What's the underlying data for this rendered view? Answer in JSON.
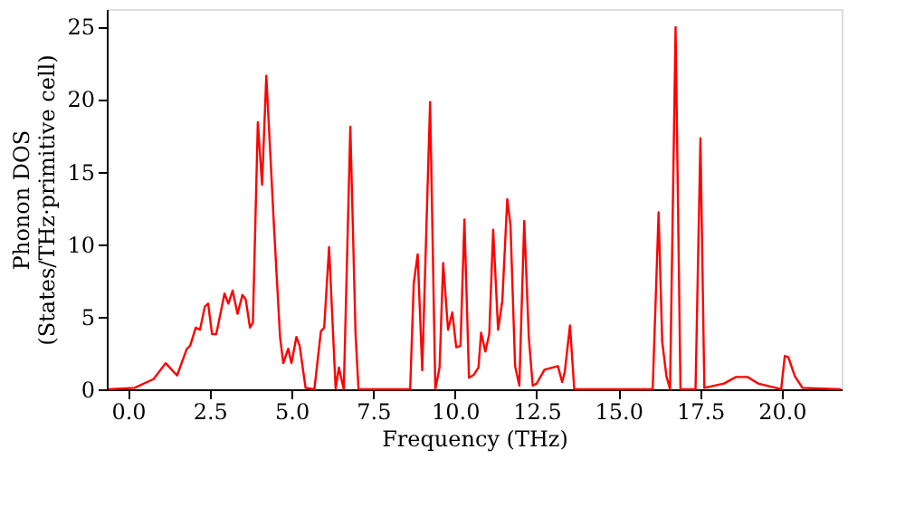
{
  "chart_data": {
    "type": "line",
    "xlabel": "Frequency (THz)",
    "ylabel": "Phonon DOS\n(States/THz·primitive cell)",
    "x": [
      -0.6,
      0.2,
      0.78,
      1.15,
      1.5,
      1.8,
      1.9,
      2.07,
      2.2,
      2.35,
      2.45,
      2.57,
      2.7,
      2.95,
      3.07,
      3.2,
      3.35,
      3.5,
      3.6,
      3.73,
      3.82,
      3.97,
      4.1,
      4.23,
      4.47,
      4.65,
      4.75,
      4.9,
      5.0,
      5.15,
      5.25,
      5.43,
      5.7,
      5.9,
      6.0,
      6.15,
      6.35,
      6.45,
      6.6,
      6.8,
      6.96,
      7.05,
      8.63,
      8.74,
      8.86,
      9.0,
      9.24,
      9.4,
      9.53,
      9.64,
      9.79,
      9.92,
      10.04,
      10.17,
      10.29,
      10.43,
      10.58,
      10.72,
      10.8,
      10.93,
      11.05,
      11.17,
      11.32,
      11.45,
      11.6,
      11.7,
      11.84,
      11.97,
      12.12,
      12.26,
      12.38,
      12.5,
      12.74,
      13.15,
      13.28,
      13.36,
      13.52,
      13.65,
      16.05,
      16.23,
      16.34,
      16.47,
      16.58,
      16.75,
      16.9,
      17.36,
      17.51,
      17.63,
      18.23,
      18.6,
      18.95,
      19.27,
      19.9,
      19.98,
      20.09,
      20.2,
      20.4,
      20.63,
      21.8
    ],
    "series": [
      {
        "color": "#ff0000",
        "values": [
          0,
          0.1,
          0.7,
          1.8,
          0.95,
          2.8,
          3.0,
          4.25,
          4.1,
          5.7,
          5.9,
          3.8,
          3.8,
          6.6,
          5.9,
          6.8,
          5.2,
          6.5,
          6.2,
          4.25,
          4.6,
          18.4,
          14.1,
          21.6,
          11.0,
          3.6,
          1.8,
          2.8,
          1.8,
          3.6,
          3.0,
          0.1,
          0,
          4.0,
          4.25,
          9.8,
          0.05,
          1.5,
          0,
          18.1,
          3.8,
          0,
          0,
          7.3,
          9.3,
          1.3,
          19.8,
          0,
          1.5,
          8.7,
          4.1,
          5.3,
          2.9,
          3.0,
          11.7,
          0.8,
          1.0,
          1.5,
          3.9,
          2.6,
          3.8,
          11.0,
          4.1,
          6.1,
          13.1,
          11.3,
          1.6,
          0.25,
          11.6,
          3.6,
          0.25,
          0.4,
          1.35,
          1.6,
          0.5,
          1.2,
          4.4,
          0,
          0,
          12.2,
          3.3,
          0.9,
          0,
          24.95,
          0,
          0,
          17.3,
          0.1,
          0.4,
          0.85,
          0.85,
          0.4,
          0.05,
          0,
          2.3,
          2.2,
          0.9,
          0.1,
          0
        ]
      }
    ],
    "xlim": [
      -0.65,
      21.83
    ],
    "ylim": [
      0,
      26.2
    ],
    "xticks": [
      {
        "value": 0,
        "label": "0.0"
      },
      {
        "value": 2.5,
        "label": "2.5"
      },
      {
        "value": 5,
        "label": "5.0"
      },
      {
        "value": 7.5,
        "label": "7.5"
      },
      {
        "value": 10,
        "label": "10.0"
      },
      {
        "value": 12.5,
        "label": "12.5"
      },
      {
        "value": 15,
        "label": "15.0"
      },
      {
        "value": 17.5,
        "label": "17.5"
      },
      {
        "value": 20,
        "label": "20.0"
      }
    ],
    "yticks": [
      0,
      5,
      10,
      15,
      20,
      25
    ],
    "grid": false,
    "marker": "none",
    "line_style": "solid"
  }
}
